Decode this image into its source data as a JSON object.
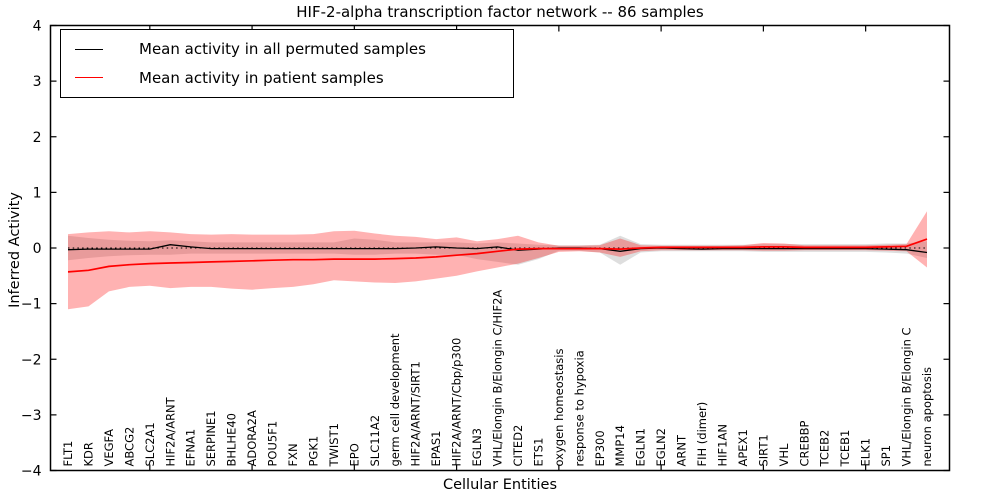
{
  "chart_data": {
    "type": "line",
    "title": "HIF-2-alpha transcription factor network -- 86 samples",
    "xlabel": "Cellular Entities",
    "ylabel": "Inferred Activity",
    "ylim": [
      -4,
      4
    ],
    "yticks": [
      -4,
      -3,
      -2,
      -1,
      0,
      1,
      2,
      3,
      4
    ],
    "grid": false,
    "legend_position": "upper left",
    "zero_reference_line": true,
    "categories": [
      "FLT1",
      "KDR",
      "VEGFA",
      "ABCG2",
      "SLC2A1",
      "HIF2A/ARNT",
      "EFNA1",
      "SERPINE1",
      "BHLHE40",
      "ADORA2A",
      "POU5F1",
      "FXN",
      "PGK1",
      "TWIST1",
      "EPO",
      "SLC11A2",
      "germ cell development",
      "HIF2A/ARNT/SIRT1",
      "EPAS1",
      "HIF2A/ARNT/Cbp/p300",
      "EGLN3",
      "VHL/Elongin B/Elongin C/HIF2A",
      "CITED2",
      "ETS1",
      "oxygen homeostasis",
      "response to hypoxia",
      "EP300",
      "MMP14",
      "EGLN1",
      "EGLN2",
      "ARNT",
      "FIH (dimer)",
      "HIF1AN",
      "APEX1",
      "SIRT1",
      "VHL",
      "CREBBP",
      "TCEB2",
      "TCEB1",
      "ELK1",
      "SP1",
      "VHL/Elongin B/Elongin C",
      "neuron apoptosis"
    ],
    "series": [
      {
        "name": "Mean activity in all permuted samples",
        "color": "#000000",
        "band_color": "#000000",
        "band_opacity": 0.13,
        "values": [
          -0.03,
          -0.02,
          -0.02,
          -0.02,
          -0.02,
          0.06,
          0.02,
          -0.01,
          -0.01,
          -0.01,
          -0.01,
          -0.01,
          -0.01,
          -0.01,
          -0.01,
          -0.01,
          -0.01,
          0.0,
          0.02,
          0.0,
          -0.01,
          0.02,
          -0.04,
          -0.02,
          0.0,
          0.0,
          -0.01,
          -0.06,
          -0.01,
          0.0,
          -0.01,
          -0.02,
          -0.01,
          -0.01,
          -0.01,
          -0.01,
          -0.01,
          -0.01,
          -0.01,
          -0.01,
          -0.02,
          -0.03,
          -0.08
        ],
        "band_upper": [
          0.22,
          0.18,
          0.15,
          0.13,
          0.12,
          0.14,
          0.12,
          0.1,
          0.1,
          0.1,
          0.1,
          0.1,
          0.1,
          0.1,
          0.17,
          0.15,
          0.1,
          0.1,
          0.1,
          0.1,
          0.08,
          0.1,
          0.08,
          0.06,
          0.05,
          0.05,
          0.06,
          0.22,
          0.07,
          0.06,
          0.06,
          0.06,
          0.06,
          0.06,
          0.07,
          0.07,
          0.07,
          0.07,
          0.07,
          0.07,
          0.08,
          0.08,
          0.12
        ],
        "band_lower": [
          -0.22,
          -0.18,
          -0.15,
          -0.13,
          -0.12,
          -0.12,
          -0.1,
          -0.1,
          -0.1,
          -0.1,
          -0.1,
          -0.1,
          -0.1,
          -0.1,
          -0.12,
          -0.12,
          -0.1,
          -0.1,
          -0.12,
          -0.12,
          -0.2,
          -0.25,
          -0.3,
          -0.2,
          -0.05,
          -0.05,
          -0.08,
          -0.3,
          -0.08,
          -0.06,
          -0.06,
          -0.06,
          -0.06,
          -0.06,
          -0.07,
          -0.07,
          -0.07,
          -0.07,
          -0.07,
          -0.07,
          -0.08,
          -0.1,
          -0.18
        ]
      },
      {
        "name": "Mean activity in patient samples",
        "color": "#ff0000",
        "band_color": "#ff0000",
        "band_opacity": 0.3,
        "values": [
          -0.43,
          -0.4,
          -0.33,
          -0.3,
          -0.28,
          -0.27,
          -0.26,
          -0.25,
          -0.24,
          -0.23,
          -0.22,
          -0.21,
          -0.21,
          -0.2,
          -0.2,
          -0.2,
          -0.19,
          -0.18,
          -0.16,
          -0.13,
          -0.1,
          -0.06,
          -0.02,
          -0.01,
          -0.01,
          -0.01,
          -0.01,
          -0.02,
          0.0,
          0.01,
          0.01,
          0.01,
          0.01,
          0.01,
          0.02,
          0.02,
          0.01,
          0.01,
          0.01,
          0.01,
          0.02,
          0.03,
          0.16
        ],
        "band_upper": [
          0.25,
          0.28,
          0.3,
          0.28,
          0.3,
          0.28,
          0.25,
          0.24,
          0.25,
          0.24,
          0.24,
          0.24,
          0.25,
          0.3,
          0.31,
          0.26,
          0.22,
          0.2,
          0.16,
          0.19,
          0.12,
          0.16,
          0.22,
          0.1,
          0.04,
          0.04,
          0.05,
          0.17,
          0.05,
          0.04,
          0.04,
          0.04,
          0.04,
          0.05,
          0.09,
          0.08,
          0.05,
          0.05,
          0.05,
          0.05,
          0.06,
          0.07,
          0.66
        ],
        "band_lower": [
          -1.1,
          -1.05,
          -0.78,
          -0.7,
          -0.68,
          -0.72,
          -0.7,
          -0.7,
          -0.73,
          -0.75,
          -0.72,
          -0.7,
          -0.65,
          -0.58,
          -0.6,
          -0.62,
          -0.63,
          -0.6,
          -0.55,
          -0.5,
          -0.42,
          -0.35,
          -0.28,
          -0.18,
          -0.07,
          -0.06,
          -0.08,
          -0.16,
          -0.06,
          -0.04,
          -0.04,
          -0.04,
          -0.04,
          -0.04,
          -0.05,
          -0.05,
          -0.04,
          -0.04,
          -0.04,
          -0.04,
          -0.05,
          -0.06,
          -0.35
        ]
      }
    ]
  }
}
